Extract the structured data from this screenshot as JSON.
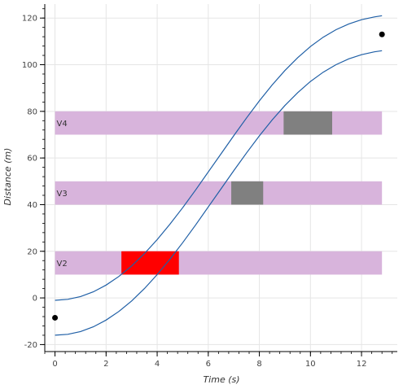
{
  "chart_data": {
    "type": "line",
    "xlabel": "Time (s)",
    "ylabel": "Distance (m)",
    "xlim": [
      -0.4,
      13.4
    ],
    "ylim": [
      -23,
      126
    ],
    "x_ticks": [
      0,
      2,
      4,
      6,
      8,
      10,
      12
    ],
    "y_ticks": [
      -20,
      0,
      20,
      40,
      60,
      80,
      100,
      120
    ],
    "grid": true,
    "band_color": "#d8b4dc",
    "curve_color": "#1f5fa6",
    "bands": [
      {
        "label": "V2",
        "y0": 10,
        "y1": 20,
        "x0": 0,
        "x1": 12.8
      },
      {
        "label": "V3",
        "y0": 40,
        "y1": 50,
        "x0": 0,
        "x1": 12.8
      },
      {
        "label": "V4",
        "y0": 70,
        "y1": 80,
        "x0": 0,
        "x1": 12.8
      }
    ],
    "blocks": [
      {
        "x0": 2.6,
        "x1": 4.85,
        "y0": 10,
        "y1": 20,
        "color": "#ff0000"
      },
      {
        "x0": 6.9,
        "x1": 8.15,
        "y0": 40,
        "y1": 50,
        "color": "#808080"
      },
      {
        "x0": 8.95,
        "x1": 10.85,
        "y0": 70,
        "y1": 80,
        "color": "#808080"
      }
    ],
    "series": [
      {
        "x": [
          0,
          0.5,
          1,
          1.5,
          2,
          2.5,
          3,
          3.5,
          4,
          4.5,
          5,
          5.5,
          6,
          6.5,
          7,
          7.5,
          8,
          8.5,
          9,
          9.5,
          10,
          10.5,
          11,
          11.5,
          12,
          12.5,
          12.8
        ],
        "y": [
          -1,
          -0.6,
          0.6,
          2.6,
          5.5,
          9.2,
          13.7,
          19.0,
          25.0,
          31.6,
          38.7,
          46.2,
          54.0,
          61.8,
          69.6,
          77.2,
          84.5,
          91.3,
          97.5,
          103.0,
          107.8,
          111.8,
          115.0,
          117.5,
          119.3,
          120.5,
          121.0
        ]
      },
      {
        "x": [
          0,
          0.5,
          1,
          1.5,
          2,
          2.5,
          3,
          3.5,
          4,
          4.5,
          5,
          5.5,
          6,
          6.5,
          7,
          7.5,
          8,
          8.5,
          9,
          9.5,
          10,
          10.5,
          11,
          11.5,
          12,
          12.5,
          12.8
        ],
        "y": [
          -16,
          -15.6,
          -14.4,
          -12.4,
          -9.5,
          -5.8,
          -1.3,
          4.0,
          10.0,
          16.6,
          23.7,
          31.2,
          39.0,
          46.8,
          54.6,
          62.2,
          69.5,
          76.3,
          82.5,
          88.0,
          92.8,
          96.8,
          100.0,
          102.5,
          104.3,
          105.5,
          106.0
        ]
      }
    ],
    "points": [
      {
        "x": 0,
        "y": -8.5
      },
      {
        "x": 12.8,
        "y": 113
      }
    ]
  }
}
